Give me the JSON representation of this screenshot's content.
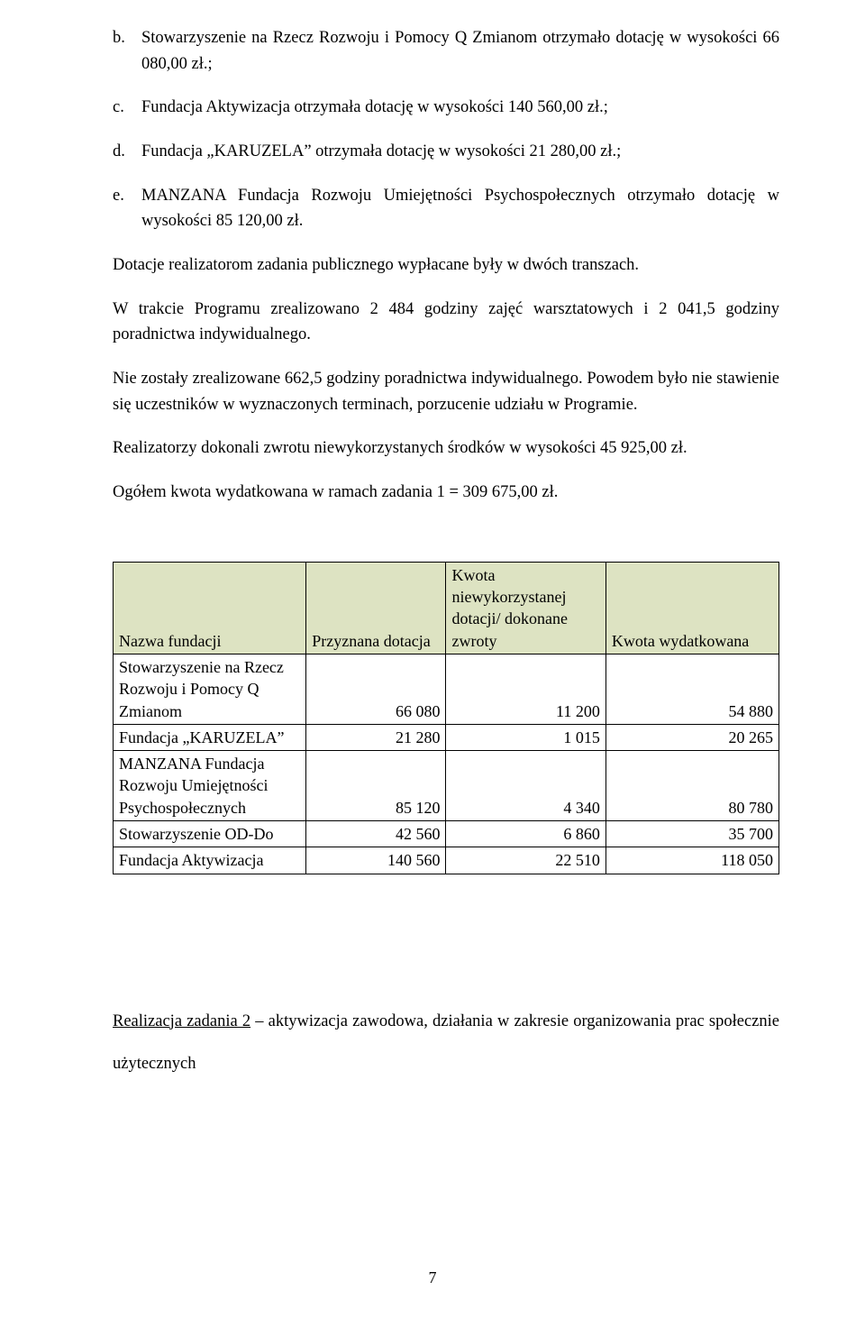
{
  "list": {
    "items": [
      {
        "marker": "b.",
        "text": "Stowarzyszenie na Rzecz Rozwoju i Pomocy Q Zmianom otrzymało dotację w wysokości 66 080,00 zł.;"
      },
      {
        "marker": "c.",
        "text": "Fundacja Aktywizacja otrzymała dotację w wysokości 140 560,00 zł.;"
      },
      {
        "marker": "d.",
        "text": "Fundacja „KARUZELA” otrzymała dotację w wysokości 21 280,00 zł.;"
      },
      {
        "marker": "e.",
        "text": "MANZANA Fundacja Rozwoju Umiejętności Psychospołecznych otrzymało dotację w wysokości 85 120,00 zł."
      }
    ]
  },
  "paragraphs": {
    "p1": "Dotacje realizatorom zadania publicznego wypłacane były w dwóch transzach.",
    "p2": "W trakcie Programu zrealizowano 2 484 godziny zajęć warsztatowych i 2 041,5 godziny poradnictwa indywidualnego.",
    "p3": "Nie zostały zrealizowane 662,5 godziny poradnictwa indywidualnego. Powodem było nie stawienie się uczestników w wyznaczonych terminach, porzucenie udziału w Programie.",
    "p4": "Realizatorzy dokonali zwrotu niewykorzystanych środków w wysokości 45 925,00 zł.",
    "p5": "Ogółem kwota wydatkowana w ramach zadania 1 = 309 675,00 zł."
  },
  "table": {
    "header_bg": "#dde3c2",
    "columns": {
      "name": "Nazwa fundacji",
      "granted": "Przyznana dotacja",
      "returned": "Kwota niewykorzystanej dotacji/ dokonane zwroty",
      "spent": "Kwota wydatkowana"
    },
    "rows": [
      {
        "name": "Stowarzyszenie na Rzecz Rozwoju i Pomocy Q Zmianom",
        "granted": "66 080",
        "returned": "11 200",
        "spent": "54 880"
      },
      {
        "name": "Fundacja „KARUZELA”",
        "granted": "21 280",
        "returned": "1 015",
        "spent": "20 265"
      },
      {
        "name": "MANZANA Fundacja Rozwoju Umiejętności Psychospołecznych",
        "granted": "85 120",
        "returned": "4 340",
        "spent": "80 780"
      },
      {
        "name": "Stowarzyszenie OD-Do",
        "granted": "42 560",
        "returned": "6 860",
        "spent": "35 700"
      },
      {
        "name": "Fundacja Aktywizacja",
        "granted": "140 560",
        "returned": "22 510",
        "spent": "118 050"
      }
    ]
  },
  "section2": {
    "underlined": "Realizacja zadania 2",
    "rest": " – aktywizacja zawodowa, działania w zakresie organizowania prac społecznie użytecznych"
  },
  "page_number": "7"
}
